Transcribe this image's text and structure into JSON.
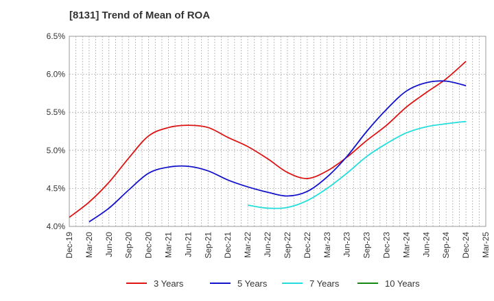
{
  "chart_data": {
    "type": "line",
    "title": "[8131]  Trend of Mean of ROA",
    "xlabel": "",
    "ylabel": "",
    "x_ticks": [
      "Dec-19",
      "Mar-20",
      "Jun-20",
      "Sep-20",
      "Dec-20",
      "Mar-21",
      "Jun-21",
      "Sep-21",
      "Dec-21",
      "Mar-22",
      "Jun-22",
      "Sep-22",
      "Dec-22",
      "Mar-23",
      "Jun-23",
      "Sep-23",
      "Dec-23",
      "Mar-24",
      "Jun-24",
      "Sep-24",
      "Dec-24",
      "Mar-25"
    ],
    "y_ticks": [
      "4.0%",
      "4.5%",
      "5.0%",
      "5.5%",
      "6.0%",
      "6.5%"
    ],
    "y_tick_values": [
      4.0,
      4.5,
      5.0,
      5.5,
      6.0,
      6.5
    ],
    "ylim": [
      4.0,
      6.5
    ],
    "grid": true,
    "legend_position": "bottom",
    "series": [
      {
        "name": "3 Years",
        "color": "#dd1111",
        "values": [
          [
            0,
            4.12
          ],
          [
            1,
            4.32
          ],
          [
            2,
            4.58
          ],
          [
            3,
            4.9
          ],
          [
            4,
            5.19
          ],
          [
            5,
            5.3
          ],
          [
            6,
            5.33
          ],
          [
            7,
            5.3
          ],
          [
            8,
            5.17
          ],
          [
            9,
            5.05
          ],
          [
            10,
            4.89
          ],
          [
            11,
            4.71
          ],
          [
            12,
            4.63
          ],
          [
            13,
            4.73
          ],
          [
            14,
            4.91
          ],
          [
            15,
            5.13
          ],
          [
            16,
            5.33
          ],
          [
            17,
            5.57
          ],
          [
            18,
            5.76
          ],
          [
            19,
            5.94
          ],
          [
            20,
            6.17
          ]
        ]
      },
      {
        "name": "5 Years",
        "color": "#1111cc",
        "values": [
          [
            1,
            4.06
          ],
          [
            2,
            4.24
          ],
          [
            3,
            4.48
          ],
          [
            4,
            4.7
          ],
          [
            5,
            4.78
          ],
          [
            6,
            4.79
          ],
          [
            7,
            4.73
          ],
          [
            8,
            4.61
          ],
          [
            9,
            4.52
          ],
          [
            10,
            4.45
          ],
          [
            11,
            4.4
          ],
          [
            12,
            4.46
          ],
          [
            13,
            4.65
          ],
          [
            14,
            4.92
          ],
          [
            15,
            5.25
          ],
          [
            16,
            5.54
          ],
          [
            17,
            5.78
          ],
          [
            18,
            5.89
          ],
          [
            19,
            5.91
          ],
          [
            20,
            5.85
          ]
        ]
      },
      {
        "name": "7 Years",
        "color": "#22dddd",
        "values": [
          [
            9,
            4.28
          ],
          [
            10,
            4.24
          ],
          [
            11,
            4.25
          ],
          [
            12,
            4.34
          ],
          [
            13,
            4.5
          ],
          [
            14,
            4.7
          ],
          [
            15,
            4.92
          ],
          [
            16,
            5.09
          ],
          [
            17,
            5.23
          ],
          [
            18,
            5.31
          ],
          [
            19,
            5.35
          ],
          [
            20,
            5.38
          ]
        ]
      },
      {
        "name": "10 Years",
        "color": "#118811",
        "values": []
      }
    ]
  }
}
